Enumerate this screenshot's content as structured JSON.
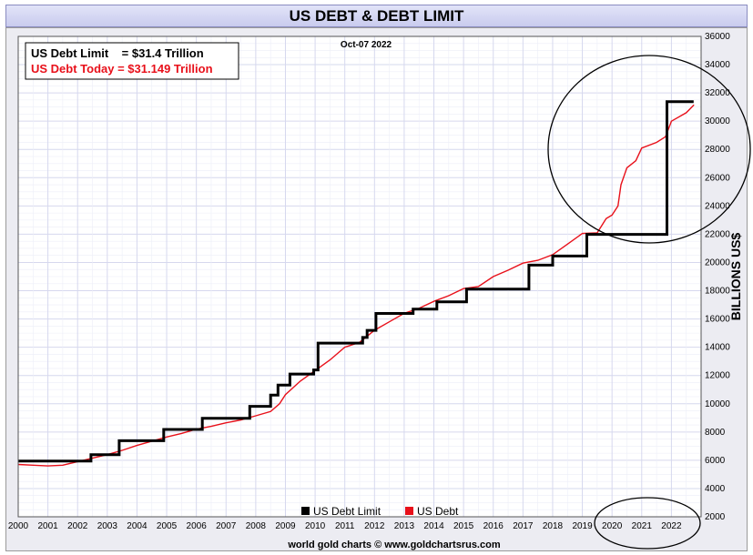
{
  "footer": "world gold charts © www.goldchartsrus.com",
  "chart_data": {
    "type": "line",
    "title": "US DEBT & DEBT LIMIT",
    "subtitle": "Oct-07  2022",
    "ylabel": "BILLIONS US$",
    "xlabel": "",
    "xlim": [
      2000,
      2023
    ],
    "ylim": [
      2000,
      36000
    ],
    "y_ticks": [
      2000,
      4000,
      6000,
      8000,
      10000,
      12000,
      14000,
      16000,
      18000,
      20000,
      22000,
      24000,
      26000,
      28000,
      30000,
      32000,
      34000,
      36000
    ],
    "x_ticks": [
      2000,
      2001,
      2002,
      2003,
      2004,
      2005,
      2006,
      2007,
      2008,
      2009,
      2010,
      2011,
      2012,
      2013,
      2014,
      2015,
      2016,
      2017,
      2018,
      2019,
      2020,
      2021,
      2022
    ],
    "grid": true,
    "legend": {
      "position": "bottom-center",
      "entries": [
        "US Debt Limit",
        "US Debt"
      ]
    },
    "info_box": {
      "line1": "US Debt Limit    = $31.4 Trillion",
      "line2": "US Debt Today = $31.149 Trillion"
    },
    "colors": {
      "debt_limit": "#000000",
      "debt": "#e8101a",
      "grid": "#d6d8ee",
      "plot_bg": "#ffffff"
    },
    "series": [
      {
        "name": "US Debt Limit",
        "style": "step",
        "points": [
          [
            2000.0,
            5950
          ],
          [
            2002.45,
            6400
          ],
          [
            2003.4,
            7384
          ],
          [
            2004.9,
            8184
          ],
          [
            2006.2,
            8965
          ],
          [
            2007.8,
            9815
          ],
          [
            2008.5,
            10615
          ],
          [
            2008.75,
            11315
          ],
          [
            2009.15,
            12104
          ],
          [
            2009.95,
            12394
          ],
          [
            2010.1,
            14294
          ],
          [
            2011.6,
            14694
          ],
          [
            2011.75,
            15194
          ],
          [
            2012.05,
            16394
          ],
          [
            2013.3,
            16699
          ],
          [
            2014.1,
            17212
          ],
          [
            2015.1,
            18113
          ],
          [
            2017.2,
            19809
          ],
          [
            2018.0,
            20456
          ],
          [
            2019.15,
            21988
          ],
          [
            2021.85,
            31381
          ],
          [
            2022.75,
            31381
          ]
        ]
      },
      {
        "name": "US Debt",
        "style": "line",
        "points": [
          [
            2000.0,
            5700
          ],
          [
            2000.5,
            5650
          ],
          [
            2001.0,
            5600
          ],
          [
            2001.5,
            5650
          ],
          [
            2002.0,
            5900
          ],
          [
            2002.5,
            6150
          ],
          [
            2003.0,
            6400
          ],
          [
            2003.5,
            6700
          ],
          [
            2004.0,
            7050
          ],
          [
            2004.5,
            7350
          ],
          [
            2005.0,
            7650
          ],
          [
            2005.5,
            7900
          ],
          [
            2006.0,
            8200
          ],
          [
            2006.5,
            8400
          ],
          [
            2007.0,
            8650
          ],
          [
            2007.5,
            8850
          ],
          [
            2008.0,
            9150
          ],
          [
            2008.5,
            9450
          ],
          [
            2008.8,
            10000
          ],
          [
            2009.0,
            10650
          ],
          [
            2009.5,
            11600
          ],
          [
            2010.0,
            12350
          ],
          [
            2010.5,
            13100
          ],
          [
            2011.0,
            14000
          ],
          [
            2011.5,
            14350
          ],
          [
            2012.0,
            15200
          ],
          [
            2012.5,
            15800
          ],
          [
            2013.0,
            16400
          ],
          [
            2013.5,
            16750
          ],
          [
            2014.0,
            17250
          ],
          [
            2014.5,
            17650
          ],
          [
            2015.0,
            18150
          ],
          [
            2015.5,
            18300
          ],
          [
            2016.0,
            19000
          ],
          [
            2016.5,
            19450
          ],
          [
            2017.0,
            19950
          ],
          [
            2017.5,
            20150
          ],
          [
            2018.0,
            20550
          ],
          [
            2018.5,
            21300
          ],
          [
            2019.0,
            22050
          ],
          [
            2019.5,
            22100
          ],
          [
            2019.8,
            23100
          ],
          [
            2020.0,
            23350
          ],
          [
            2020.2,
            24000
          ],
          [
            2020.3,
            25500
          ],
          [
            2020.5,
            26700
          ],
          [
            2020.8,
            27200
          ],
          [
            2021.0,
            28100
          ],
          [
            2021.5,
            28500
          ],
          [
            2021.8,
            28900
          ],
          [
            2022.0,
            30000
          ],
          [
            2022.5,
            30600
          ],
          [
            2022.76,
            31149
          ]
        ]
      }
    ],
    "annotations": [
      "circle around 2020–2022 debt surge",
      "circle around 2020–2022 x-axis labels"
    ]
  }
}
